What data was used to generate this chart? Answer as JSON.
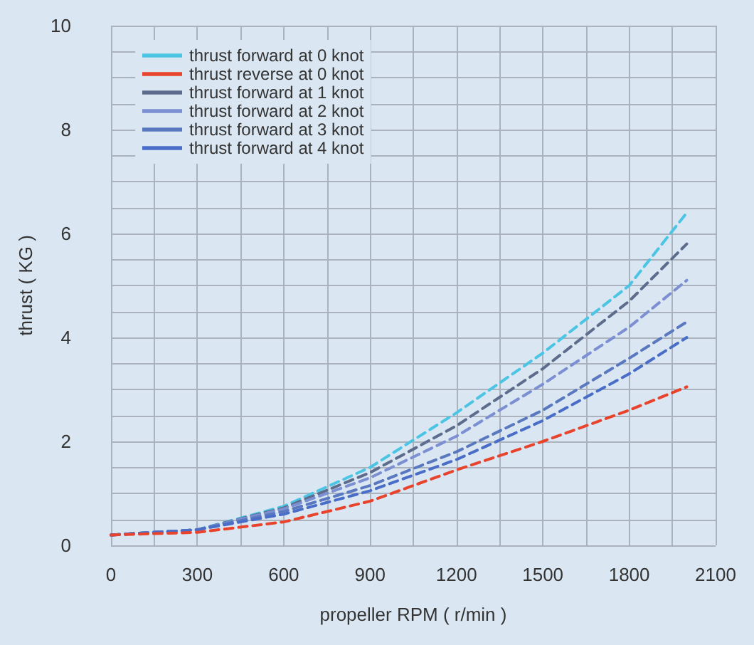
{
  "chart_data": {
    "type": "line",
    "xlabel": "propeller RPM ( r/min )",
    "ylabel": "thrust ( KG )",
    "x": [
      0,
      300,
      600,
      900,
      1200,
      1500,
      1800,
      2000
    ],
    "series": [
      {
        "name": "thrust forward at 0 knot",
        "color": "#4cc4e4",
        "values": [
          0.2,
          0.3,
          0.75,
          1.5,
          2.55,
          3.7,
          5.0,
          6.4
        ]
      },
      {
        "name": "thrust reverse at 0 knot",
        "color": "#e8432c",
        "values": [
          0.2,
          0.25,
          0.45,
          0.85,
          1.45,
          2.0,
          2.6,
          3.05
        ]
      },
      {
        "name": "thrust forward at 1 knot",
        "color": "#5d6c8c",
        "values": [
          0.2,
          0.3,
          0.72,
          1.4,
          2.3,
          3.4,
          4.7,
          5.8
        ]
      },
      {
        "name": "thrust forward at 2 knot",
        "color": "#7b8fd2",
        "values": [
          0.2,
          0.3,
          0.7,
          1.3,
          2.1,
          3.1,
          4.2,
          5.1
        ]
      },
      {
        "name": "thrust forward at 3 knot",
        "color": "#5a78c0",
        "values": [
          0.2,
          0.3,
          0.65,
          1.15,
          1.8,
          2.6,
          3.6,
          4.3
        ]
      },
      {
        "name": "thrust forward at 4 knot",
        "color": "#4a6ec8",
        "values": [
          0.2,
          0.3,
          0.6,
          1.05,
          1.65,
          2.4,
          3.3,
          4.0
        ]
      }
    ],
    "xlim": [
      0,
      2100
    ],
    "xticks": [
      0,
      300,
      600,
      900,
      1200,
      1500,
      1800,
      2100
    ],
    "ylim": [
      0,
      10
    ],
    "yticks": [
      0,
      2,
      4,
      6,
      8,
      10
    ],
    "grid": true,
    "legend": "top left",
    "marker": "none",
    "line_style": "dashed"
  }
}
